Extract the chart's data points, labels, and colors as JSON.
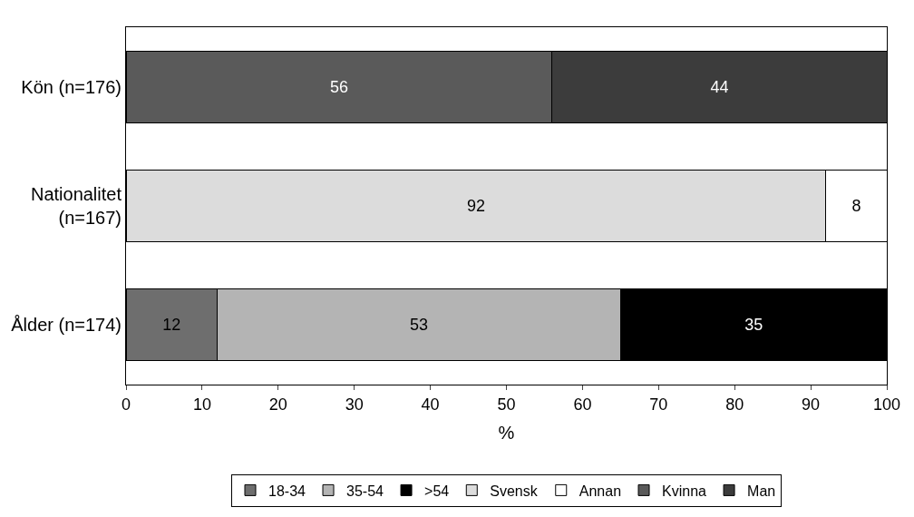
{
  "chart_data": {
    "type": "bar",
    "orientation": "horizontal",
    "stacked": true,
    "xlabel": "%",
    "categories": [
      "Kön (n=176)",
      "Nationalitet\n(n=167)",
      "Ålder (n=174)"
    ],
    "series": [
      {
        "name": "18-34",
        "color": "#6e6e6e",
        "values": [
          null,
          null,
          12
        ]
      },
      {
        "name": "35-54",
        "color": "#b4b4b4",
        "values": [
          null,
          null,
          53
        ]
      },
      {
        "name": ">54",
        "color": "#000000",
        "values": [
          null,
          null,
          35
        ]
      },
      {
        "name": "Svensk",
        "color": "#dcdcdc",
        "values": [
          null,
          92,
          null
        ]
      },
      {
        "name": "Annan",
        "color": "#ffffff",
        "values": [
          null,
          8,
          null
        ]
      },
      {
        "name": "Kvinna",
        "color": "#5a5a5a",
        "values": [
          56,
          null,
          null
        ]
      },
      {
        "name": "Man",
        "color": "#3c3c3c",
        "values": [
          44,
          null,
          null
        ]
      }
    ],
    "xlim": [
      0,
      100
    ],
    "xticks": [
      0,
      10,
      20,
      30,
      40,
      50,
      60,
      70,
      80,
      90,
      100
    ],
    "data_labels": true,
    "legend": "bottom"
  }
}
